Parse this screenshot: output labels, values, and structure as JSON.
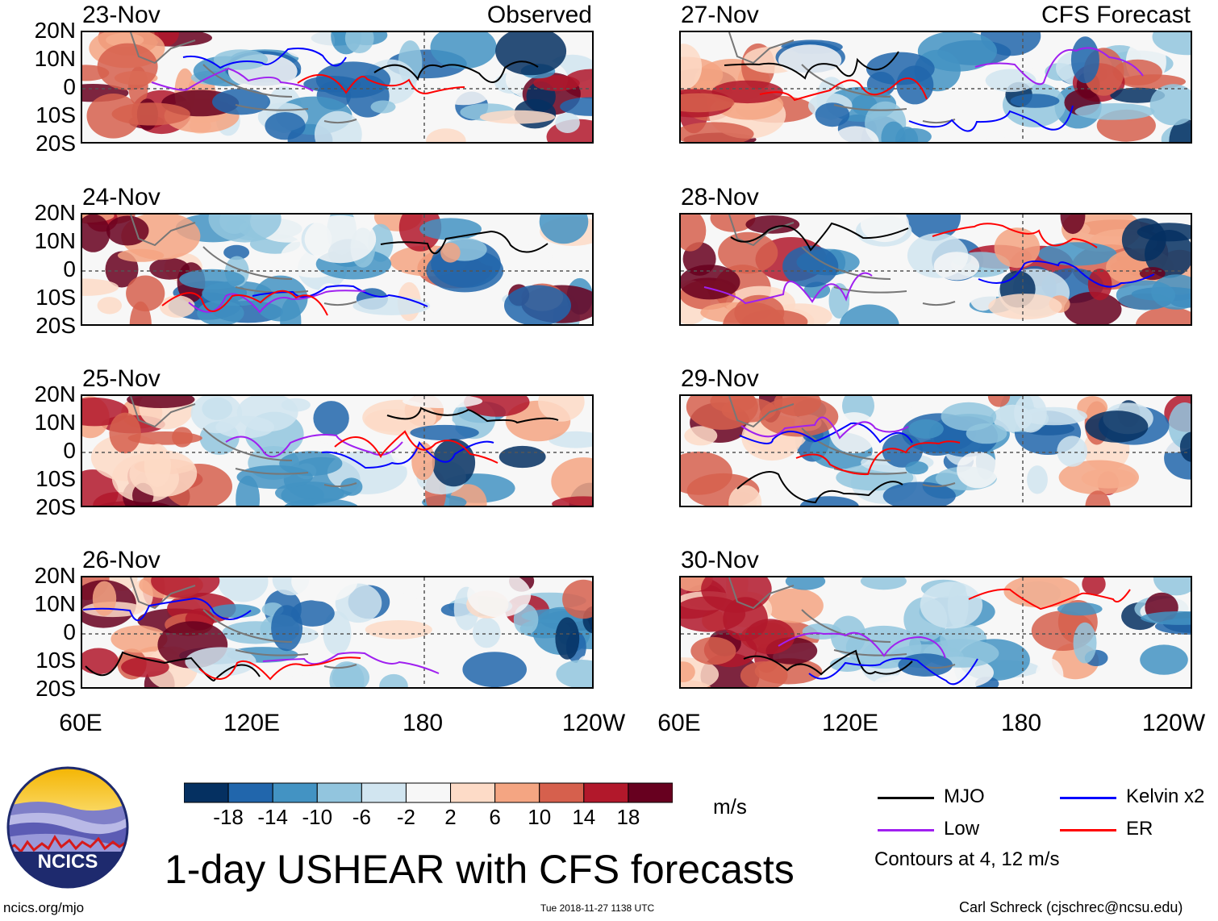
{
  "chart_data": {
    "type": "heatmap",
    "title": "1-day USHEAR with CFS forecasts",
    "variable": "USHEAR",
    "units": "m/s",
    "columns": [
      {
        "label": "Observed",
        "dates": [
          "23-Nov",
          "24-Nov",
          "25-Nov",
          "26-Nov"
        ]
      },
      {
        "label": "CFS Forecast",
        "dates": [
          "27-Nov",
          "28-Nov",
          "29-Nov",
          "30-Nov"
        ]
      }
    ],
    "xticks": [
      "60E",
      "120E",
      "180",
      "120W"
    ],
    "yticks": [
      "20N",
      "10N",
      "0",
      "10S",
      "20S"
    ],
    "xrange": [
      "60E",
      "120W"
    ],
    "yrange": [
      "20S",
      "20N"
    ],
    "colorbar": {
      "levels": [
        "-18",
        "-14",
        "-10",
        "-6",
        "-2",
        "2",
        "6",
        "10",
        "14",
        "18"
      ],
      "colors": [
        "#053061",
        "#2166ac",
        "#4393c3",
        "#92c5de",
        "#d1e5f0",
        "#f7f7f7",
        "#fddbc7",
        "#f4a582",
        "#d6604d",
        "#b2182b",
        "#67001f"
      ]
    },
    "contours_note": "Contours at 4, 12 m/s",
    "contour_legend": [
      {
        "name": "MJO",
        "color": "#000000"
      },
      {
        "name": "Kelvin x2",
        "color": "#0000ff"
      },
      {
        "name": "Low",
        "color": "#a020f0"
      },
      {
        "name": "ER",
        "color": "#ff0000"
      }
    ]
  },
  "logo_text": "NCICS",
  "footer": {
    "left": "ncics.org/mjo",
    "center": "Tue 2018-11-27 1138 UTC",
    "right": "Carl Schreck (cjschrec@ncsu.edu)"
  }
}
